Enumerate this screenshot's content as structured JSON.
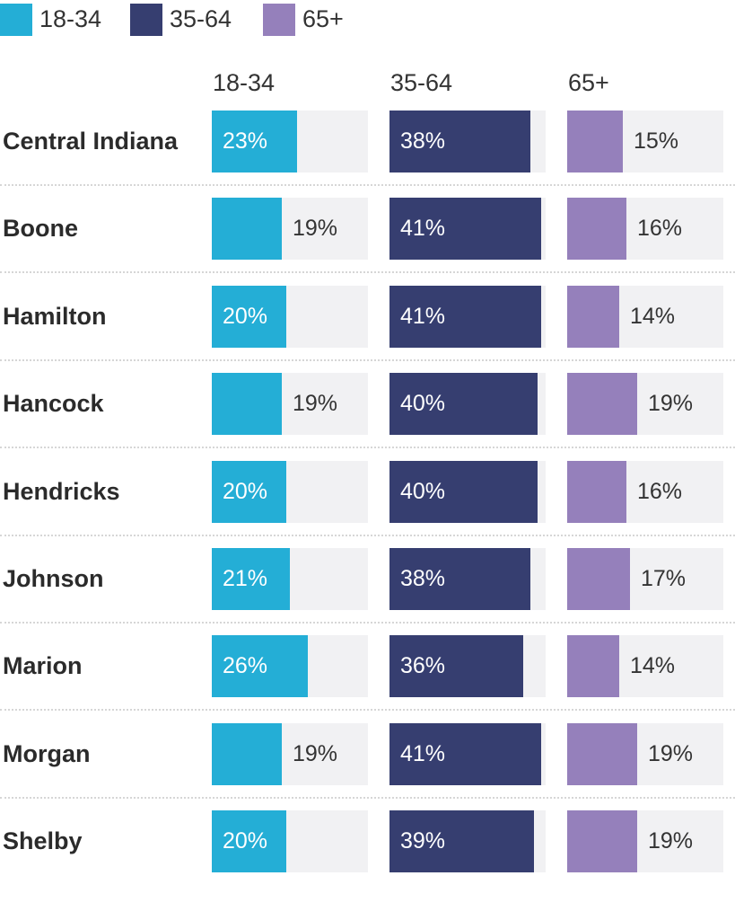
{
  "legend": [
    {
      "label": "18-34",
      "color": "#24aed6"
    },
    {
      "label": "35-64",
      "color": "#363e70"
    },
    {
      "label": "65+",
      "color": "#9580bb"
    }
  ],
  "chart_data": {
    "type": "bar",
    "orientation": "horizontal",
    "layout": "small-multiples",
    "xlim": [
      0,
      60
    ],
    "grid": false,
    "legend_position": "top-left",
    "column_headers": [
      "18-34",
      "35-64",
      "65+"
    ],
    "categories": [
      "Central Indiana",
      "Boone",
      "Hamilton",
      "Hancock",
      "Hendricks",
      "Johnson",
      "Marion",
      "Morgan",
      "Shelby"
    ],
    "series": [
      {
        "name": "18-34",
        "color": "#24aed6",
        "values": [
          23,
          19,
          20,
          19,
          20,
          21,
          26,
          19,
          20
        ],
        "labels": [
          "23%",
          "19%",
          "20%",
          "19%",
          "20%",
          "21%",
          "26%",
          "19%",
          "20%"
        ]
      },
      {
        "name": "35-64",
        "color": "#363e70",
        "values": [
          38,
          41,
          41,
          40,
          40,
          38,
          36,
          41,
          39
        ],
        "labels": [
          "38%",
          "41%",
          "41%",
          "40%",
          "40%",
          "38%",
          "36%",
          "41%",
          "39%"
        ]
      },
      {
        "name": "65+",
        "color": "#9580bb",
        "values": [
          15,
          16,
          14,
          19,
          16,
          17,
          14,
          19,
          19
        ],
        "labels": [
          "15%",
          "16%",
          "14%",
          "19%",
          "16%",
          "17%",
          "14%",
          "19%",
          "19%"
        ]
      }
    ]
  }
}
